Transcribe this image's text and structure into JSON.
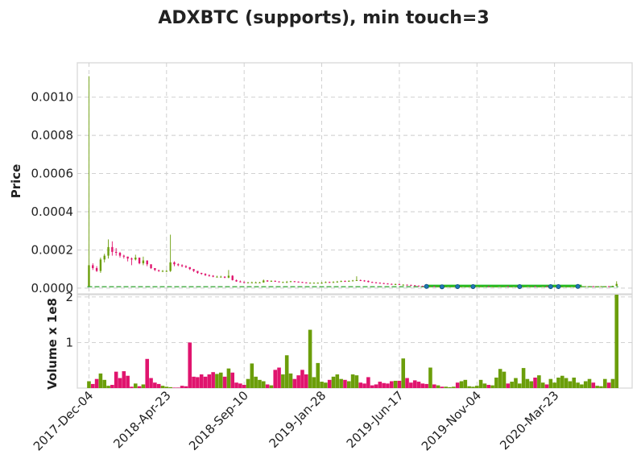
{
  "chart_data": {
    "type": "candlestick",
    "title": "ADXBTC (supports), min touch=3",
    "panels": {
      "price": {
        "ylabel": "Price",
        "ylim": [
          -3e-05,
          0.00118
        ],
        "yticks": [
          0.0,
          0.0002,
          0.0004,
          0.0006,
          0.0008,
          0.001
        ],
        "ytick_labels": [
          "0.0000",
          "0.0002",
          "0.0004",
          "0.0006",
          "0.0008",
          "0.0010"
        ]
      },
      "volume": {
        "ylabel": "Volume x 1e8",
        "ylim": [
          0,
          2.05
        ],
        "yticks": [
          1,
          2
        ],
        "ytick_labels": [
          "1",
          "2"
        ]
      }
    },
    "x_tick_labels": [
      "2017-Dec-04",
      "2018-Apr-23",
      "2018-Sep-10",
      "2019-Jan-28",
      "2019-Jun-17",
      "2019-Nov-04",
      "2020-Mar-23"
    ],
    "x_tick_weeks": [
      0,
      20,
      40,
      60,
      80,
      100,
      120
    ],
    "x_range_weeks": [
      -3,
      140
    ],
    "grid": true,
    "colors": {
      "up": "#6b9e0a",
      "down": "#e0146e",
      "support_line": "#22bb22",
      "support_dashed": "#2ca02c",
      "touch_marker": "#1f77b4"
    },
    "support_level": 7.5e-06,
    "support_segment_weeks": [
      87,
      127
    ],
    "touch_point_weeks": [
      87,
      91,
      95,
      99,
      111,
      119,
      121,
      126
    ],
    "series": [
      {
        "name": "open",
        "values": [
          1e-05,
          0.00012,
          0.000105,
          9e-05,
          0.00015,
          0.00017,
          0.000215,
          0.00019,
          0.000185,
          0.00017,
          0.000165,
          0.000155,
          0.00015,
          0.00016,
          0.00013,
          0.000145,
          0.000125,
          0.000105,
          9.5e-05,
          9e-05,
          9e-05,
          9e-05,
          0.000135,
          0.000125,
          0.00012,
          0.000115,
          0.00011,
          0.0001,
          9e-05,
          8e-05,
          7.5e-05,
          6.8e-05,
          6.5e-05,
          6e-05,
          6e-05,
          6e-05,
          5.5e-05,
          6.5e-05,
          4.2e-05,
          3.5e-05,
          3.2e-05,
          3e-05,
          3e-05,
          3e-05,
          3e-05,
          3e-05,
          4e-05,
          3.5e-05,
          3.8e-05,
          3.5e-05,
          3.2e-05,
          3.2e-05,
          3.2e-05,
          3.6e-05,
          3.4e-05,
          3.2e-05,
          3e-05,
          2.8e-05,
          2.8e-05,
          2.8e-05,
          2.8e-05,
          2.8e-05,
          3.2e-05,
          3e-05,
          3.2e-05,
          3.4e-05,
          3.7e-05,
          3.5e-05,
          3.8e-05,
          4e-05,
          4.2e-05,
          4e-05,
          3.8e-05,
          3.2e-05,
          3e-05,
          2.8e-05,
          2.6e-05,
          2.4e-05,
          2.2e-05,
          2e-05,
          2.1e-05,
          1.8e-05,
          1.8e-05,
          1.7e-05,
          1.5e-05,
          1.3e-05,
          1.2e-05,
          1.1e-05,
          1e-05,
          1e-05,
          9e-06,
          9e-06,
          8e-06,
          9e-06,
          9e-06,
          1e-05,
          9e-06,
          9e-06,
          9e-06,
          9e-06,
          9e-06,
          1e-05,
          1e-05,
          1e-05,
          9e-06,
          9e-06,
          9e-06,
          1e-05,
          1e-05,
          9e-06,
          9e-06,
          9e-06,
          9e-06,
          9e-06,
          1e-05,
          1e-05,
          9e-06,
          9e-06,
          1e-05,
          9e-06,
          9e-06,
          9e-06,
          9e-06,
          9e-06,
          9e-06,
          9e-06,
          9e-06,
          1e-05,
          1e-05,
          1e-05,
          1e-05,
          9e-06,
          9e-06,
          1e-05,
          1e-05,
          9e-06,
          1.2e-05
        ]
      },
      {
        "name": "close",
        "values": [
          0.00012,
          0.000105,
          9e-05,
          0.00015,
          0.00017,
          0.000215,
          0.00019,
          0.000185,
          0.00017,
          0.000165,
          0.000155,
          0.00015,
          0.00016,
          0.00013,
          0.000145,
          0.000125,
          0.000105,
          9.5e-05,
          9e-05,
          9e-05,
          9e-05,
          0.000135,
          0.000125,
          0.00012,
          0.000115,
          0.00011,
          0.0001,
          9e-05,
          8e-05,
          7.5e-05,
          6.8e-05,
          6.5e-05,
          6e-05,
          6e-05,
          6e-05,
          5.5e-05,
          6.5e-05,
          4.2e-05,
          3.5e-05,
          3.2e-05,
          3e-05,
          3e-05,
          3e-05,
          3e-05,
          3e-05,
          4e-05,
          3.5e-05,
          3.8e-05,
          3.5e-05,
          3.2e-05,
          3.2e-05,
          3.2e-05,
          3.6e-05,
          3.4e-05,
          3.2e-05,
          3e-05,
          2.8e-05,
          2.8e-05,
          2.8e-05,
          2.8e-05,
          2.8e-05,
          3.2e-05,
          3e-05,
          3.2e-05,
          3.4e-05,
          3.7e-05,
          3.5e-05,
          3.8e-05,
          4e-05,
          4.2e-05,
          4e-05,
          3.8e-05,
          3.2e-05,
          3e-05,
          2.8e-05,
          2.6e-05,
          2.4e-05,
          2.2e-05,
          2e-05,
          2.1e-05,
          1.8e-05,
          1.8e-05,
          1.7e-05,
          1.5e-05,
          1.3e-05,
          1.2e-05,
          1.1e-05,
          1e-05,
          1e-05,
          9e-06,
          9e-06,
          8e-06,
          9e-06,
          9e-06,
          1e-05,
          9e-06,
          9e-06,
          9e-06,
          9e-06,
          9e-06,
          1e-05,
          1e-05,
          1e-05,
          9e-06,
          9e-06,
          9e-06,
          1e-05,
          1e-05,
          9e-06,
          9e-06,
          9e-06,
          9e-06,
          9e-06,
          1e-05,
          1e-05,
          9e-06,
          9e-06,
          1e-05,
          9e-06,
          9e-06,
          9e-06,
          9e-06,
          9e-06,
          9e-06,
          9e-06,
          9e-06,
          1e-05,
          1e-05,
          1e-05,
          1e-05,
          9e-06,
          9e-06,
          1e-05,
          1e-05,
          9e-06,
          1.2e-05,
          2.2e-05
        ]
      },
      {
        "name": "high",
        "values": [
          0.00111,
          0.00013,
          0.000115,
          0.00016,
          0.00018,
          0.000255,
          0.000245,
          0.00021,
          0.00019,
          0.000175,
          0.000165,
          0.00016,
          0.000175,
          0.00016,
          0.000165,
          0.000135,
          0.00011,
          0.000105,
          9.5e-05,
          9.5e-05,
          9.5e-05,
          0.00028,
          0.00014,
          0.00013,
          0.000125,
          0.00012,
          0.00011,
          0.0001,
          9e-05,
          8e-05,
          7.8e-05,
          7.2e-05,
          6.8e-05,
          6.5e-05,
          6.5e-05,
          6.2e-05,
          9.5e-05,
          6.8e-05,
          4.5e-05,
          4e-05,
          3.5e-05,
          3.2e-05,
          3.4e-05,
          3.4e-05,
          3.3e-05,
          4.5e-05,
          4.2e-05,
          4.1e-05,
          4e-05,
          3.6e-05,
          3.4e-05,
          3.8e-05,
          3.8e-05,
          3.7e-05,
          3.5e-05,
          3.3e-05,
          3.1e-05,
          3e-05,
          3e-05,
          3e-05,
          3.2e-05,
          3.5e-05,
          3.4e-05,
          3.6e-05,
          3.8e-05,
          4e-05,
          4e-05,
          4.1e-05,
          4.3e-05,
          6.2e-05,
          4.5e-05,
          4.2e-05,
          4e-05,
          3.4e-05,
          3.2e-05,
          3e-05,
          2.8e-05,
          2.6e-05,
          2.4e-05,
          2.4e-05,
          2.3e-05,
          2e-05,
          1.9e-05,
          1.8e-05,
          1.6e-05,
          1.4e-05,
          1.3e-05,
          1.2e-05,
          1.1e-05,
          1.1e-05,
          1e-05,
          1e-05,
          1e-05,
          1e-05,
          1.1e-05,
          1.1e-05,
          1e-05,
          1e-05,
          1e-05,
          1e-05,
          1.1e-05,
          1.1e-05,
          1.1e-05,
          1.1e-05,
          1e-05,
          1e-05,
          1.1e-05,
          1.1e-05,
          1.1e-05,
          1e-05,
          1e-05,
          1e-05,
          1e-05,
          1.1e-05,
          1.1e-05,
          1.1e-05,
          1e-05,
          1.1e-05,
          1.1e-05,
          1e-05,
          1e-05,
          1e-05,
          1e-05,
          1e-05,
          1e-05,
          1e-05,
          1.1e-05,
          1.1e-05,
          1.1e-05,
          1.1e-05,
          1.1e-05,
          1e-05,
          1.1e-05,
          1.1e-05,
          1.1e-05,
          1.3e-05,
          3.6e-05
        ]
      },
      {
        "name": "low",
        "values": [
          1e-05,
          9.5e-05,
          8.5e-05,
          8e-05,
          0.000135,
          0.000155,
          0.00017,
          0.00017,
          0.00016,
          0.000155,
          0.00014,
          0.00012,
          0.000145,
          0.000125,
          0.00012,
          0.000115,
          0.0001,
          9e-05,
          8.5e-05,
          8.5e-05,
          8.5e-05,
          8.5e-05,
          0.000115,
          0.000115,
          0.00011,
          0.000105,
          9.5e-05,
          8.5e-05,
          7.5e-05,
          7e-05,
          6.4e-05,
          6e-05,
          5.7e-05,
          5.6e-05,
          5.6e-05,
          5.2e-05,
          5.2e-05,
          4e-05,
          3.3e-05,
          3e-05,
          2.8e-05,
          2.8e-05,
          2.8e-05,
          2.8e-05,
          2.8e-05,
          2.9e-05,
          3.3e-05,
          3.3e-05,
          3.3e-05,
          3e-05,
          3e-05,
          3e-05,
          3.1e-05,
          3.2e-05,
          3e-05,
          2.8e-05,
          2.6e-05,
          2.6e-05,
          2.6e-05,
          2.6e-05,
          2.6e-05,
          2.7e-05,
          2.8e-05,
          2.9e-05,
          3.1e-05,
          3.2e-05,
          3.3e-05,
          3.4e-05,
          3.6e-05,
          3.8e-05,
          3.7e-05,
          3.4e-05,
          3e-05,
          2.8e-05,
          2.6e-05,
          2.4e-05,
          2.2e-05,
          2e-05,
          1.9e-05,
          1.7e-05,
          1.7e-05,
          1.6e-05,
          1.5e-05,
          1.3e-05,
          1.2e-05,
          1.1e-05,
          1e-05,
          9e-06,
          9e-06,
          8e-06,
          8e-06,
          7e-06,
          8e-06,
          8e-06,
          8e-06,
          8e-06,
          8e-06,
          8e-06,
          8e-06,
          8e-06,
          9e-06,
          9e-06,
          8e-06,
          8e-06,
          8e-06,
          8e-06,
          9e-06,
          8e-06,
          8e-06,
          8e-06,
          8e-06,
          8e-06,
          8e-06,
          9e-06,
          8e-06,
          8e-06,
          8e-06,
          8e-06,
          8e-06,
          8e-06,
          8e-06,
          8e-06,
          8e-06,
          8e-06,
          8e-06,
          8e-06,
          9e-06,
          9e-06,
          9e-06,
          8e-06,
          8e-06,
          8e-06,
          9e-06,
          8e-06,
          8e-06,
          9e-06,
          1.1e-05
        ]
      },
      {
        "name": "volume",
        "values": [
          0.15,
          0.09,
          0.2,
          0.32,
          0.18,
          0.05,
          0.07,
          0.36,
          0.22,
          0.37,
          0.27,
          0.03,
          0.1,
          0.04,
          0.08,
          0.64,
          0.22,
          0.12,
          0.09,
          0.05,
          0.03,
          0.02,
          0.01,
          0.01,
          0.05,
          0.04,
          1.0,
          0.25,
          0.24,
          0.3,
          0.25,
          0.3,
          0.35,
          0.31,
          0.34,
          0.25,
          0.43,
          0.34,
          0.12,
          0.1,
          0.07,
          0.2,
          0.54,
          0.25,
          0.18,
          0.15,
          0.08,
          0.06,
          0.4,
          0.45,
          0.3,
          0.72,
          0.32,
          0.2,
          0.28,
          0.4,
          0.3,
          1.28,
          0.24,
          0.55,
          0.14,
          0.12,
          0.18,
          0.25,
          0.3,
          0.2,
          0.18,
          0.15,
          0.3,
          0.28,
          0.12,
          0.1,
          0.24,
          0.06,
          0.08,
          0.14,
          0.11,
          0.1,
          0.15,
          0.16,
          0.16,
          0.65,
          0.22,
          0.12,
          0.17,
          0.14,
          0.1,
          0.09,
          0.45,
          0.08,
          0.06,
          0.03,
          0.03,
          0.02,
          0.03,
          0.12,
          0.15,
          0.18,
          0.04,
          0.03,
          0.05,
          0.18,
          0.1,
          0.07,
          0.06,
          0.23,
          0.42,
          0.36,
          0.1,
          0.14,
          0.22,
          0.1,
          0.44,
          0.2,
          0.15,
          0.23,
          0.28,
          0.12,
          0.08,
          0.2,
          0.12,
          0.23,
          0.27,
          0.22,
          0.15,
          0.23,
          0.12,
          0.08,
          0.15,
          0.2,
          0.12,
          0.05,
          0.04,
          0.2,
          0.12,
          0.2,
          2.05
        ]
      }
    ]
  }
}
